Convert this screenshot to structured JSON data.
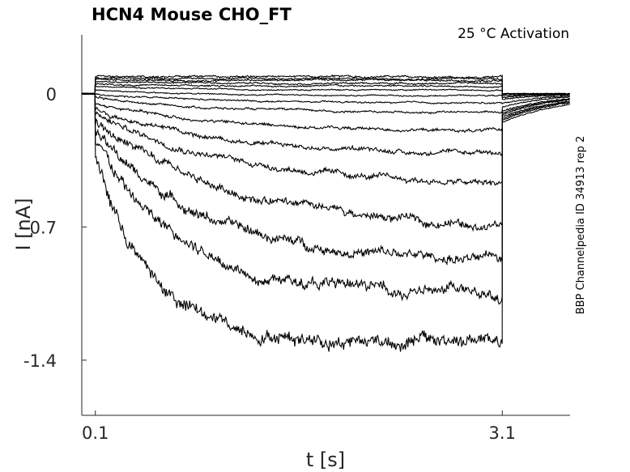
{
  "chart_data": {
    "type": "line",
    "title": "HCN4  Mouse  CHO_FT",
    "annotation": "25 °C  Activation",
    "side_label": "BBP Channelpedia ID 34913 rep 2",
    "xlabel": "t [s]",
    "ylabel": "I [nA]",
    "xlim": [
      0.0,
      3.6
    ],
    "ylim": [
      -1.69,
      0.31
    ],
    "x_ticks": [
      0.1,
      3.1
    ],
    "x_tick_labels": [
      "0.1",
      "3.1"
    ],
    "y_ticks": [
      0,
      -0.7,
      -1.4
    ],
    "y_tick_labels": [
      "0",
      "-0.7",
      "-1.4"
    ],
    "grid": false,
    "legend": "none",
    "stimulus": {
      "pulse_start": 0.1,
      "pulse_end": 3.1
    },
    "series": [
      {
        "baseline": 0.0,
        "pulse_start_level": 0.09,
        "steady_state": 0.09,
        "tau": 0.6,
        "tail_start": 0.0,
        "tail_tau": 0.2
      },
      {
        "baseline": 0.0,
        "pulse_start_level": 0.085,
        "steady_state": 0.08,
        "tau": 0.6,
        "tail_start": 0.0,
        "tail_tau": 0.2
      },
      {
        "baseline": 0.0,
        "pulse_start_level": 0.075,
        "steady_state": 0.07,
        "tau": 0.6,
        "tail_start": 0.0,
        "tail_tau": 0.2
      },
      {
        "baseline": 0.0,
        "pulse_start_level": 0.065,
        "steady_state": 0.055,
        "tau": 0.6,
        "tail_start": 0.0,
        "tail_tau": 0.2
      },
      {
        "baseline": 0.0,
        "pulse_start_level": 0.05,
        "steady_state": 0.04,
        "tau": 0.6,
        "tail_start": -0.01,
        "tail_tau": 0.25
      },
      {
        "baseline": 0.0,
        "pulse_start_level": 0.04,
        "steady_state": 0.02,
        "tau": 0.6,
        "tail_start": -0.02,
        "tail_tau": 0.25
      },
      {
        "baseline": 0.0,
        "pulse_start_level": 0.02,
        "steady_state": -0.01,
        "tau": 0.7,
        "tail_start": -0.03,
        "tail_tau": 0.3
      },
      {
        "baseline": 0.0,
        "pulse_start_level": 0.0,
        "steady_state": -0.05,
        "tau": 0.8,
        "tail_start": -0.05,
        "tail_tau": 0.35
      },
      {
        "baseline": 0.0,
        "pulse_start_level": -0.02,
        "steady_state": -0.1,
        "tau": 0.8,
        "tail_start": -0.07,
        "tail_tau": 0.35
      },
      {
        "baseline": 0.0,
        "pulse_start_level": -0.05,
        "steady_state": -0.2,
        "tau": 0.9,
        "tail_start": -0.09,
        "tail_tau": 0.4
      },
      {
        "baseline": 0.0,
        "pulse_start_level": -0.08,
        "steady_state": -0.33,
        "tau": 1.0,
        "tail_start": -0.1,
        "tail_tau": 0.4
      },
      {
        "baseline": 0.0,
        "pulse_start_level": -0.11,
        "steady_state": -0.5,
        "tau": 1.1,
        "tail_start": -0.11,
        "tail_tau": 0.4
      },
      {
        "baseline": 0.0,
        "pulse_start_level": -0.15,
        "steady_state": -0.72,
        "tau": 1.0,
        "tail_start": -0.12,
        "tail_tau": 0.45
      },
      {
        "baseline": 0.0,
        "pulse_start_level": -0.2,
        "steady_state": -0.89,
        "tau": 0.8,
        "tail_start": -0.13,
        "tail_tau": 0.45
      },
      {
        "baseline": 0.0,
        "pulse_start_level": -0.25,
        "steady_state": -1.05,
        "tau": 0.6,
        "tail_start": -0.14,
        "tail_tau": 0.45
      },
      {
        "baseline": 0.0,
        "pulse_start_level": -0.32,
        "steady_state": -1.3,
        "tau": 0.4,
        "tail_start": -0.15,
        "tail_tau": 0.5
      }
    ]
  }
}
